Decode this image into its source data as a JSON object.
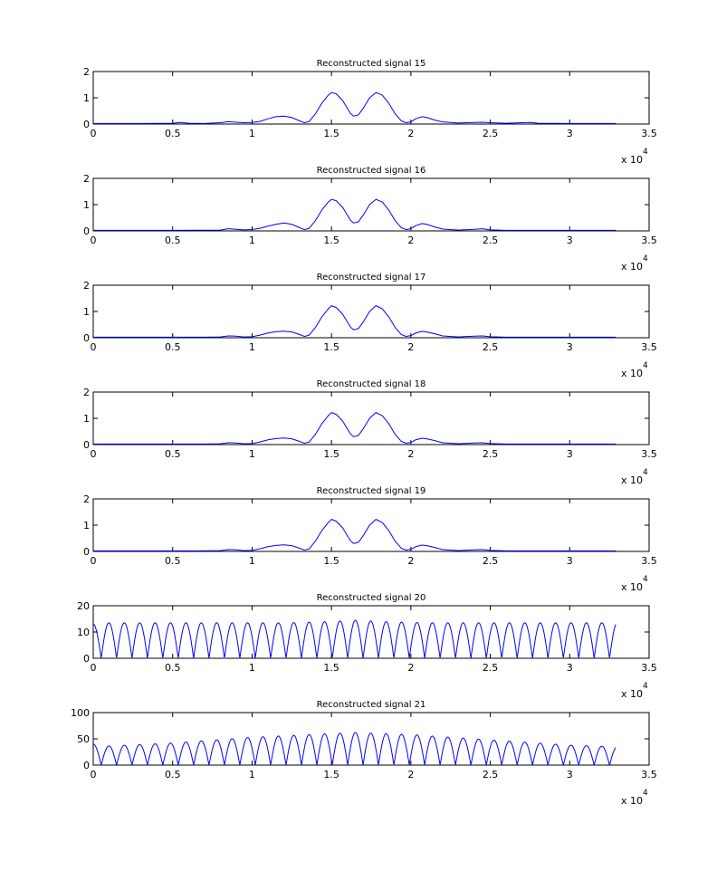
{
  "figure": {
    "background": "#ffffff",
    "line_color": "#0000ff",
    "axis_color": "#000000"
  },
  "chart_data": [
    {
      "type": "line",
      "title": "Reconstructed signal 15",
      "xlim": [
        0,
        3.5
      ],
      "ylim": [
        0,
        2
      ],
      "x_multiplier": "x 10",
      "x_exponent": "4",
      "xticks": [
        "0",
        "0.5",
        "1",
        "1.5",
        "2",
        "2.5",
        "3",
        "3.5"
      ],
      "yticks": [
        "0",
        "1",
        "2"
      ],
      "grid": false,
      "series": [
        {
          "x": [
            0,
            0.3,
            0.5,
            0.55,
            0.6,
            0.7,
            0.8,
            0.85,
            0.9,
            0.95,
            1.0,
            1.05,
            1.1,
            1.15,
            1.2,
            1.25,
            1.3,
            1.33,
            1.36,
            1.4,
            1.44,
            1.48,
            1.5,
            1.53,
            1.57,
            1.6,
            1.62,
            1.64,
            1.67,
            1.7,
            1.74,
            1.78,
            1.82,
            1.86,
            1.9,
            1.94,
            1.97,
            2.0,
            2.03,
            2.07,
            2.1,
            2.15,
            2.2,
            2.3,
            2.4,
            2.45,
            2.5,
            2.6,
            2.7,
            2.75,
            2.8,
            3.0,
            3.2,
            3.29
          ],
          "y": [
            0.02,
            0.02,
            0.03,
            0.06,
            0.03,
            0.02,
            0.05,
            0.09,
            0.07,
            0.05,
            0.06,
            0.1,
            0.2,
            0.28,
            0.3,
            0.25,
            0.12,
            0.05,
            0.1,
            0.4,
            0.8,
            1.1,
            1.2,
            1.15,
            0.9,
            0.6,
            0.4,
            0.3,
            0.35,
            0.6,
            1.0,
            1.2,
            1.1,
            0.8,
            0.4,
            0.12,
            0.05,
            0.08,
            0.2,
            0.28,
            0.25,
            0.15,
            0.08,
            0.04,
            0.06,
            0.07,
            0.05,
            0.03,
            0.05,
            0.06,
            0.03,
            0.02,
            0.02,
            0.02
          ]
        }
      ]
    },
    {
      "type": "line",
      "title": "Reconstructed signal 16",
      "xlim": [
        0,
        3.5
      ],
      "ylim": [
        0,
        2
      ],
      "x_multiplier": "x 10",
      "x_exponent": "4",
      "xticks": [
        "0",
        "0.5",
        "1",
        "1.5",
        "2",
        "2.5",
        "3",
        "3.5"
      ],
      "yticks": [
        "0",
        "1",
        "2"
      ],
      "grid": false,
      "series": [
        {
          "x": [
            0,
            0.5,
            0.8,
            0.85,
            0.9,
            0.95,
            1.0,
            1.05,
            1.1,
            1.15,
            1.2,
            1.25,
            1.3,
            1.33,
            1.36,
            1.4,
            1.44,
            1.48,
            1.5,
            1.53,
            1.57,
            1.6,
            1.62,
            1.64,
            1.67,
            1.7,
            1.74,
            1.78,
            1.82,
            1.86,
            1.9,
            1.94,
            1.97,
            2.0,
            2.03,
            2.07,
            2.1,
            2.15,
            2.2,
            2.3,
            2.4,
            2.45,
            2.5,
            2.6,
            3.0,
            3.29
          ],
          "y": [
            0.02,
            0.02,
            0.03,
            0.08,
            0.06,
            0.04,
            0.05,
            0.1,
            0.18,
            0.25,
            0.3,
            0.25,
            0.12,
            0.05,
            0.1,
            0.4,
            0.8,
            1.1,
            1.2,
            1.15,
            0.9,
            0.6,
            0.4,
            0.3,
            0.35,
            0.6,
            1.0,
            1.2,
            1.1,
            0.8,
            0.4,
            0.12,
            0.05,
            0.08,
            0.2,
            0.28,
            0.25,
            0.15,
            0.07,
            0.03,
            0.06,
            0.08,
            0.04,
            0.02,
            0.02,
            0.02
          ]
        }
      ]
    },
    {
      "type": "line",
      "title": "Reconstructed signal 17",
      "xlim": [
        0,
        3.5
      ],
      "ylim": [
        0,
        2
      ],
      "x_multiplier": "x 10",
      "x_exponent": "4",
      "xticks": [
        "0",
        "0.5",
        "1",
        "1.5",
        "2",
        "2.5",
        "3",
        "3.5"
      ],
      "yticks": [
        "0",
        "1",
        "2"
      ],
      "grid": false,
      "series": [
        {
          "x": [
            0,
            0.7,
            0.8,
            0.85,
            0.9,
            0.95,
            1.0,
            1.05,
            1.1,
            1.15,
            1.2,
            1.25,
            1.3,
            1.33,
            1.36,
            1.4,
            1.44,
            1.48,
            1.5,
            1.53,
            1.57,
            1.6,
            1.62,
            1.64,
            1.67,
            1.7,
            1.74,
            1.78,
            1.82,
            1.86,
            1.9,
            1.94,
            1.97,
            2.0,
            2.03,
            2.07,
            2.1,
            2.15,
            2.2,
            2.3,
            2.4,
            2.45,
            2.5,
            2.6,
            3.0,
            3.29
          ],
          "y": [
            0.02,
            0.02,
            0.03,
            0.07,
            0.06,
            0.03,
            0.04,
            0.1,
            0.18,
            0.23,
            0.25,
            0.22,
            0.12,
            0.05,
            0.1,
            0.4,
            0.8,
            1.1,
            1.22,
            1.15,
            0.9,
            0.6,
            0.4,
            0.3,
            0.35,
            0.6,
            1.0,
            1.22,
            1.1,
            0.8,
            0.4,
            0.12,
            0.05,
            0.08,
            0.18,
            0.24,
            0.22,
            0.15,
            0.07,
            0.03,
            0.06,
            0.07,
            0.04,
            0.02,
            0.02,
            0.02
          ]
        }
      ]
    },
    {
      "type": "line",
      "title": "Reconstructed signal 18",
      "xlim": [
        0,
        3.5
      ],
      "ylim": [
        0,
        2
      ],
      "x_multiplier": "x 10",
      "x_exponent": "4",
      "xticks": [
        "0",
        "0.5",
        "1",
        "1.5",
        "2",
        "2.5",
        "3",
        "3.5"
      ],
      "yticks": [
        "0",
        "1",
        "2"
      ],
      "grid": false,
      "series": [
        {
          "x": [
            0,
            0.7,
            0.8,
            0.85,
            0.9,
            0.95,
            1.0,
            1.05,
            1.1,
            1.15,
            1.2,
            1.25,
            1.3,
            1.33,
            1.36,
            1.4,
            1.44,
            1.48,
            1.5,
            1.53,
            1.57,
            1.6,
            1.62,
            1.64,
            1.67,
            1.7,
            1.74,
            1.78,
            1.82,
            1.86,
            1.9,
            1.94,
            1.97,
            2.0,
            2.03,
            2.07,
            2.1,
            2.15,
            2.2,
            2.3,
            2.4,
            2.45,
            2.5,
            2.6,
            3.0,
            3.29
          ],
          "y": [
            0.02,
            0.02,
            0.03,
            0.07,
            0.06,
            0.03,
            0.04,
            0.1,
            0.18,
            0.23,
            0.25,
            0.22,
            0.12,
            0.05,
            0.1,
            0.4,
            0.8,
            1.1,
            1.22,
            1.15,
            0.9,
            0.6,
            0.4,
            0.3,
            0.35,
            0.6,
            1.0,
            1.22,
            1.1,
            0.8,
            0.4,
            0.12,
            0.05,
            0.08,
            0.18,
            0.24,
            0.22,
            0.15,
            0.07,
            0.03,
            0.06,
            0.07,
            0.04,
            0.02,
            0.02,
            0.02
          ]
        }
      ]
    },
    {
      "type": "line",
      "title": "Reconstructed signal 19",
      "xlim": [
        0,
        3.5
      ],
      "ylim": [
        0,
        2
      ],
      "x_multiplier": "x 10",
      "x_exponent": "4",
      "xticks": [
        "0",
        "0.5",
        "1",
        "1.5",
        "2",
        "2.5",
        "3",
        "3.5"
      ],
      "yticks": [
        "0",
        "1",
        "2"
      ],
      "grid": false,
      "series": [
        {
          "x": [
            0,
            0.7,
            0.8,
            0.85,
            0.9,
            0.95,
            1.0,
            1.05,
            1.1,
            1.15,
            1.2,
            1.25,
            1.3,
            1.33,
            1.36,
            1.4,
            1.44,
            1.48,
            1.5,
            1.53,
            1.57,
            1.6,
            1.62,
            1.64,
            1.67,
            1.7,
            1.74,
            1.78,
            1.82,
            1.86,
            1.9,
            1.94,
            1.97,
            2.0,
            2.03,
            2.07,
            2.1,
            2.15,
            2.2,
            2.3,
            2.4,
            2.45,
            2.5,
            2.6,
            3.0,
            3.29
          ],
          "y": [
            0.02,
            0.02,
            0.03,
            0.07,
            0.06,
            0.03,
            0.04,
            0.1,
            0.18,
            0.23,
            0.25,
            0.22,
            0.12,
            0.05,
            0.1,
            0.4,
            0.8,
            1.1,
            1.22,
            1.15,
            0.9,
            0.6,
            0.4,
            0.3,
            0.35,
            0.6,
            1.0,
            1.22,
            1.1,
            0.8,
            0.4,
            0.12,
            0.05,
            0.08,
            0.18,
            0.24,
            0.22,
            0.15,
            0.07,
            0.03,
            0.06,
            0.07,
            0.04,
            0.02,
            0.02,
            0.02
          ]
        }
      ]
    },
    {
      "type": "line",
      "title": "Reconstructed signal 20",
      "xlim": [
        0,
        3.5
      ],
      "ylim": [
        0,
        20
      ],
      "x_multiplier": "x 10",
      "x_exponent": "4",
      "xticks": [
        "0",
        "0.5",
        "1",
        "1.5",
        "2",
        "2.5",
        "3",
        "3.5"
      ],
      "yticks": [
        "0",
        "10",
        "20"
      ],
      "grid": false,
      "series": [
        {
          "type": "rectified_oscillation",
          "x_start": 0,
          "x_end": 3.29,
          "first_zero": 0.05,
          "period": 0.097,
          "start_value": 13,
          "peak_by_x": [
            [
              0,
              13.5
            ],
            [
              1.2,
              13.5
            ],
            [
              1.5,
              14
            ],
            [
              1.65,
              14.5
            ],
            [
              1.8,
              14
            ],
            [
              2.1,
              13.5
            ],
            [
              3.29,
              13.5
            ]
          ]
        }
      ]
    },
    {
      "type": "line",
      "title": "Reconstructed signal 21",
      "xlim": [
        0,
        3.5
      ],
      "ylim": [
        0,
        100
      ],
      "x_multiplier": "x 10",
      "x_exponent": "4",
      "xticks": [
        "0",
        "0.5",
        "1",
        "1.5",
        "2",
        "2.5",
        "3",
        "3.5"
      ],
      "yticks": [
        "0",
        "50",
        "100"
      ],
      "grid": false,
      "series": [
        {
          "type": "rectified_oscillation",
          "x_start": 0,
          "x_end": 3.29,
          "first_zero": 0.05,
          "period": 0.097,
          "start_value": 40,
          "peak_by_x": [
            [
              0,
              35
            ],
            [
              0.5,
              42
            ],
            [
              1.0,
              53
            ],
            [
              1.5,
              60
            ],
            [
              1.65,
              62
            ],
            [
              2.0,
              58
            ],
            [
              2.5,
              48
            ],
            [
              3.0,
              38
            ],
            [
              3.29,
              35
            ]
          ]
        }
      ]
    }
  ]
}
